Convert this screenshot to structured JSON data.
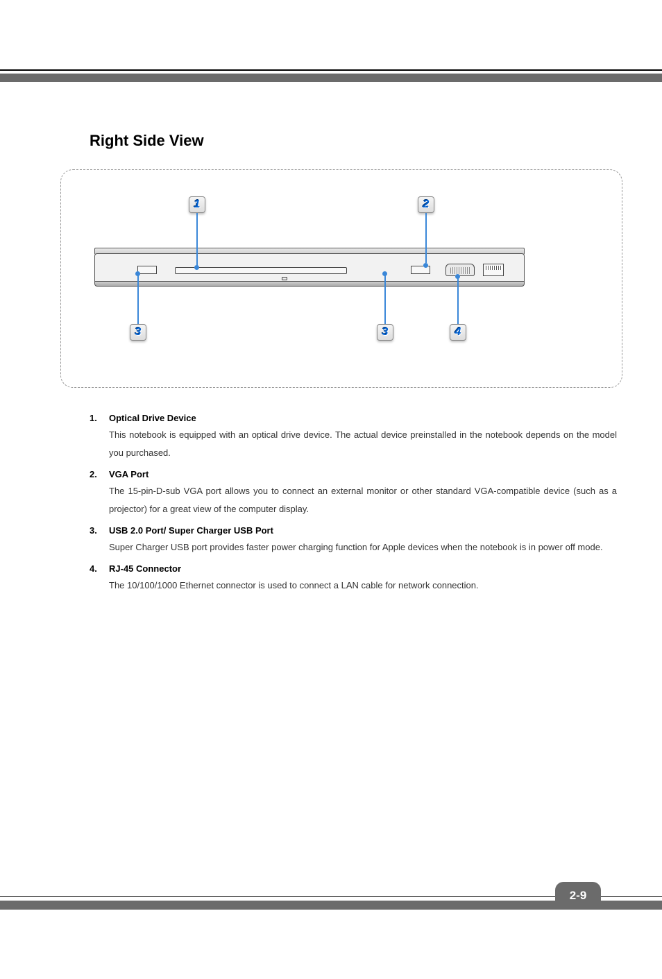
{
  "page_number": "2-9",
  "section_title": "Right Side View",
  "callouts": {
    "c1": "1",
    "c2": "2",
    "c3": "3",
    "c4": "4"
  },
  "items": [
    {
      "num": "1.",
      "title": "Optical Drive Device",
      "desc": "This notebook is equipped with an optical drive device.   The actual device preinstalled in the notebook depends on the model you purchased."
    },
    {
      "num": "2.",
      "title": "VGA Port",
      "desc": "The 15-pin-D-sub VGA port allows you to connect an external monitor or other standard VGA-compatible device (such as a projector) for a great view of the computer display."
    },
    {
      "num": "3.",
      "title": "USB 2.0 Port/ Super Charger USB Port",
      "desc": "Super Charger USB port provides faster power charging function for Apple devices when the notebook is in power off mode."
    },
    {
      "num": "4.",
      "title": "RJ-45 Connector",
      "desc": "The 10/100/1000 Ethernet connector is used to connect a LAN cable for network connection."
    }
  ],
  "colors": {
    "bar": "#6b6b6b",
    "callout_line": "#3a87d8",
    "badge_text": "#0060d0",
    "text": "#333333",
    "border_dashed": "#999999"
  }
}
